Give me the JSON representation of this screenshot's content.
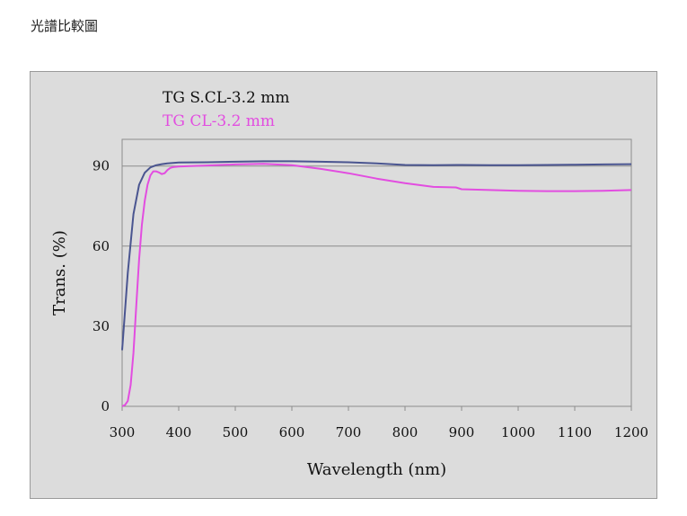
{
  "page": {
    "heading": "光譜比較圖"
  },
  "chart_data": {
    "type": "line",
    "xlabel": "Wavelength (nm)",
    "ylabel": "Trans. (%)",
    "xlim": [
      300,
      1200
    ],
    "ylim": [
      0,
      100
    ],
    "x_ticks": [
      "300",
      "400",
      "500",
      "600",
      "700",
      "800",
      "900",
      "1000",
      "1100",
      "1200"
    ],
    "y_ticks": [
      "0",
      "30",
      "60",
      "90"
    ],
    "grid": "horizontal",
    "legend_position": "top-left",
    "series": [
      {
        "name": "TG S.CL-3.2 mm",
        "color": "#4a5590",
        "x": [
          300,
          310,
          320,
          330,
          340,
          350,
          360,
          370,
          380,
          400,
          450,
          500,
          550,
          600,
          650,
          700,
          750,
          800,
          850,
          900,
          950,
          1000,
          1050,
          1100,
          1150,
          1200
        ],
        "y": [
          21,
          50,
          72,
          83,
          87.5,
          89.5,
          90.3,
          90.7,
          91,
          91.3,
          91.4,
          91.6,
          91.8,
          91.8,
          91.6,
          91.4,
          91,
          90.4,
          90.3,
          90.4,
          90.3,
          90.3,
          90.4,
          90.5,
          90.6,
          90.7
        ]
      },
      {
        "name": "TG CL-3.2 mm",
        "color": "#e24de0",
        "x": [
          300,
          305,
          310,
          315,
          320,
          325,
          330,
          335,
          340,
          345,
          350,
          355,
          360,
          365,
          370,
          375,
          380,
          385,
          390,
          400,
          420,
          450,
          500,
          550,
          600,
          650,
          700,
          750,
          800,
          850,
          890,
          900,
          950,
          1000,
          1050,
          1100,
          1150,
          1200
        ],
        "y": [
          0,
          0.5,
          2,
          8,
          20,
          38,
          55,
          68,
          77,
          83,
          86.5,
          88,
          88,
          87.6,
          87,
          87.3,
          88.5,
          89.3,
          89.6,
          89.8,
          90,
          90.2,
          90.6,
          90.8,
          90.3,
          89,
          87.3,
          85.3,
          83.6,
          82.2,
          82,
          81.3,
          81,
          80.7,
          80.6,
          80.6,
          80.7,
          81
        ]
      }
    ]
  }
}
